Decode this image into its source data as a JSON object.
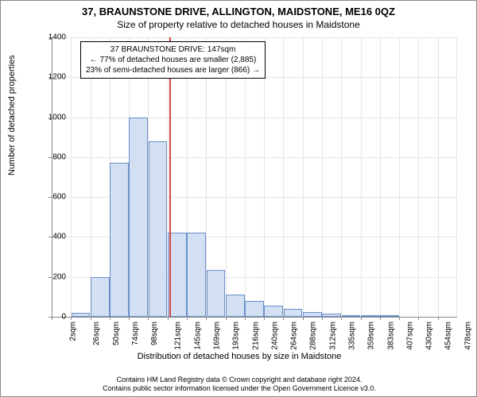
{
  "title": "37, BRAUNSTONE DRIVE, ALLINGTON, MAIDSTONE, ME16 0QZ",
  "subtitle": "Size of property relative to detached houses in Maidstone",
  "ylabel": "Number of detached properties",
  "xlabel": "Distribution of detached houses by size in Maidstone",
  "footer_line1": "Contains HM Land Registry data © Crown copyright and database right 2024.",
  "footer_line2": "Contains public sector information licensed under the Open Government Licence v3.0.",
  "info_box": {
    "line1": "37 BRAUNSTONE DRIVE: 147sqm",
    "line2": "← 77% of detached houses are smaller (2,885)",
    "line3": "23% of semi-detached houses are larger (866) →"
  },
  "chart": {
    "type": "histogram",
    "ylim": [
      0,
      1400
    ],
    "ytick_step": 200,
    "yticks": [
      0,
      200,
      400,
      600,
      800,
      1000,
      1200,
      1400
    ],
    "x_categories": [
      "2sqm",
      "26sqm",
      "50sqm",
      "74sqm",
      "98sqm",
      "121sqm",
      "145sqm",
      "169sqm",
      "193sqm",
      "216sqm",
      "240sqm",
      "264sqm",
      "288sqm",
      "312sqm",
      "335sqm",
      "359sqm",
      "383sqm",
      "407sqm",
      "430sqm",
      "454sqm",
      "478sqm"
    ],
    "values": [
      0,
      20,
      200,
      770,
      1000,
      880,
      420,
      420,
      235,
      110,
      80,
      55,
      40,
      25,
      15,
      10,
      5,
      5,
      0,
      0,
      0
    ],
    "bar_fill": "#d3dff2",
    "bar_stroke": "#6a8fc8",
    "marker_value_sqm": 147,
    "marker_color": "#d64545",
    "background_color": "#ffffff",
    "grid_color": "#e5e5e5",
    "axis_color": "#888888",
    "title_fontsize": 13,
    "subtitle_fontsize": 12,
    "label_fontsize": 11,
    "tick_fontsize": 10,
    "footer_fontsize": 9
  }
}
